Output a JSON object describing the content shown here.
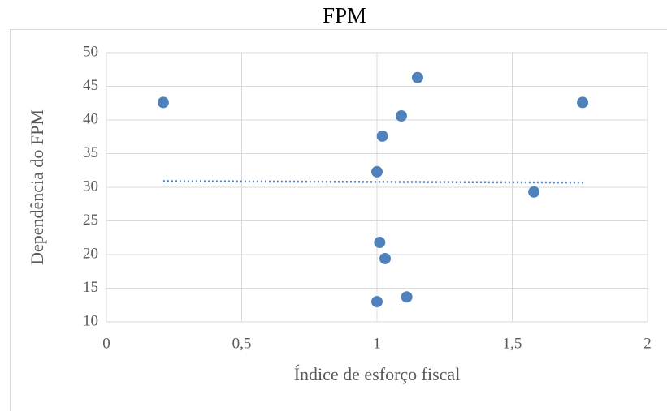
{
  "chart_data": {
    "type": "scatter",
    "title": "FPM",
    "x_label": "Índice de esforço fiscal",
    "y_label": "Dependência do FPM",
    "x": [
      0.21,
      1.15,
      1.76,
      1.09,
      1.02,
      1.0,
      1.58,
      1.01,
      1.03,
      1.11,
      1.0
    ],
    "series": [
      {
        "color": "#4f81bd",
        "values": [
          42.6,
          46.3,
          42.6,
          40.6,
          37.6,
          32.3,
          29.3,
          21.8,
          19.4,
          13.7,
          13.0
        ]
      }
    ],
    "trendline": {
      "x": [
        0.21,
        1.76
      ],
      "values": [
        30.9,
        30.7
      ],
      "color": "#4f81bd",
      "style": "dotted"
    },
    "xlim": [
      0,
      2
    ],
    "xticks": [
      0,
      {
        "value": 0.5,
        "label": "0,5"
      },
      1,
      {
        "value": 1.5,
        "label": "1,5"
      },
      2
    ],
    "ylim": [
      10,
      50
    ],
    "yticks": [
      10,
      15,
      20,
      25,
      30,
      35,
      40,
      45,
      50
    ],
    "grid": true
  }
}
